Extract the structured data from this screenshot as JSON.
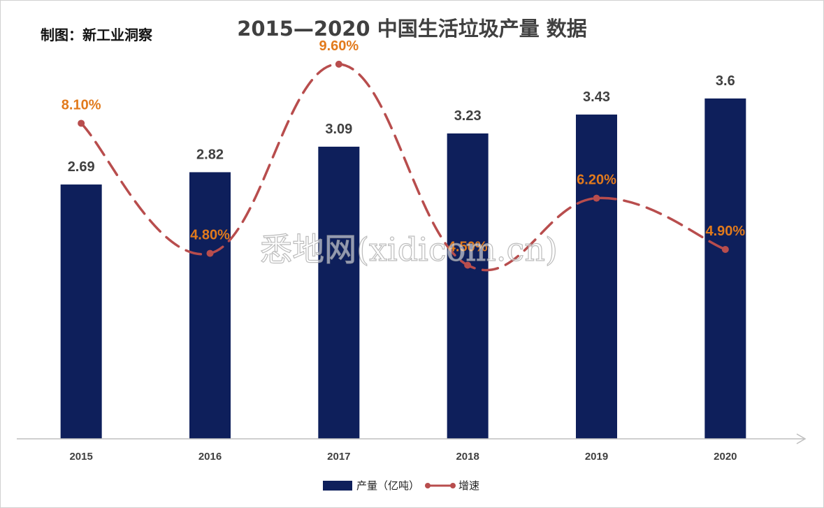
{
  "credit": "制图：新工业洞察",
  "watermark": "悉地网(xidicom.cn)",
  "chart_data": {
    "type": "bar",
    "title": "2015—2020 中国生活垃圾产量 数据",
    "categories": [
      "2015",
      "2016",
      "2017",
      "2018",
      "2019",
      "2020"
    ],
    "series": [
      {
        "name": "产量（亿吨）",
        "type": "bar",
        "values": [
          2.69,
          2.82,
          3.09,
          3.23,
          3.43,
          3.6
        ],
        "labels": [
          "2.69",
          "2.82",
          "3.09",
          "3.23",
          "3.43",
          "3.6"
        ],
        "color": "#0e1f5b"
      },
      {
        "name": "增速",
        "type": "line",
        "style": "dashed-smooth",
        "values": [
          8.1,
          4.8,
          9.6,
          4.5,
          6.2,
          4.9
        ],
        "labels": [
          "8.10%",
          "4.80%",
          "9.60%",
          "4.50%",
          "6.20%",
          "4.90%"
        ],
        "color": "#b84d4d",
        "label_color": "#e27a1c"
      }
    ],
    "xlabel": "",
    "ylabel": "",
    "gridlines": false,
    "legend_position": "bottom"
  }
}
